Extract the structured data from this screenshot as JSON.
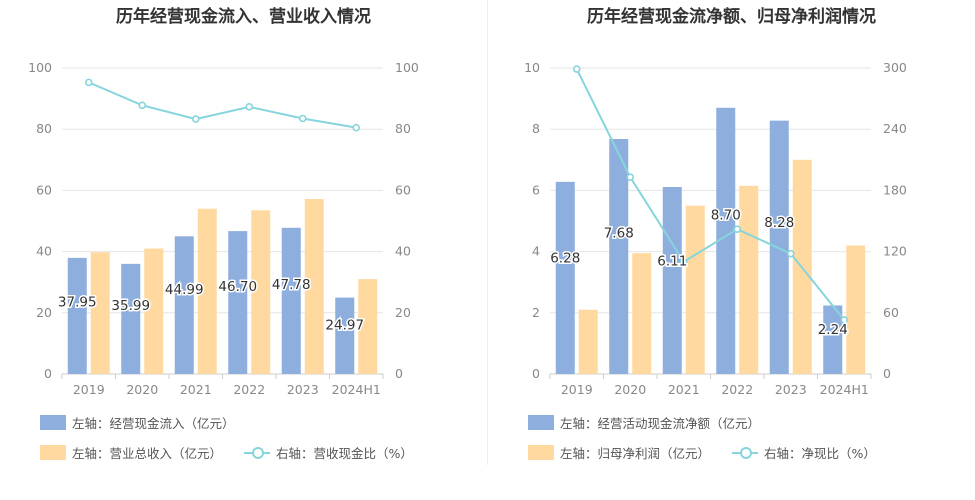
{
  "charts": [
    {
      "id": "left",
      "title": "历年经营现金流入、营业收入情况",
      "type": "bar+line",
      "categories": [
        "2019",
        "2020",
        "2021",
        "2022",
        "2023",
        "2024H1"
      ],
      "left_axis": {
        "min": 0,
        "max": 100,
        "ticks": [
          "0",
          "20",
          "40",
          "60",
          "80",
          "100"
        ]
      },
      "right_axis": {
        "min": 0,
        "max": 100,
        "ticks": [
          "0",
          "20",
          "40",
          "60",
          "80",
          "100"
        ]
      },
      "series": [
        {
          "name": "左轴：经营现金流入（亿元）",
          "type": "bar",
          "axis": "left",
          "color": "#8eaedd",
          "values": [
            37.95,
            35.99,
            44.99,
            46.7,
            47.78,
            24.97
          ],
          "labels": [
            "37.95",
            "35.99",
            "44.99",
            "46.70",
            "47.78",
            "24.97"
          ]
        },
        {
          "name": "左轴：营业总收入（亿元）",
          "type": "bar",
          "axis": "left",
          "color": "#ffd9a0",
          "values": [
            39.8,
            41,
            54,
            53.5,
            57.2,
            31
          ]
        },
        {
          "name": "右轴：营收现金比（%）",
          "type": "line",
          "axis": "right",
          "color": "#86d5dd",
          "values": [
            95.3,
            87.8,
            83.3,
            87.3,
            83.5,
            80.5
          ]
        }
      ]
    },
    {
      "id": "right",
      "title": "历年经营现金流净额、归母净利润情况",
      "type": "bar+line",
      "categories": [
        "2019",
        "2020",
        "2021",
        "2022",
        "2023",
        "2024H1"
      ],
      "left_axis": {
        "min": 0,
        "max": 10,
        "ticks": [
          "0",
          "2",
          "4",
          "6",
          "8",
          "10"
        ]
      },
      "right_axis": {
        "min": 0,
        "max": 300,
        "ticks": [
          "0",
          "60",
          "120",
          "180",
          "240",
          "300"
        ]
      },
      "series": [
        {
          "name": "左轴：经营活动现金流净额（亿元）",
          "type": "bar",
          "axis": "left",
          "color": "#8eaedd",
          "values": [
            6.28,
            7.68,
            6.11,
            8.7,
            8.28,
            2.24
          ],
          "labels": [
            "6.28",
            "7.68",
            "6.11",
            "8.70",
            "8.28",
            "2.24"
          ]
        },
        {
          "name": "左轴：归母净利润（亿元）",
          "type": "bar",
          "axis": "left",
          "color": "#ffd9a0",
          "values": [
            2.1,
            3.95,
            5.5,
            6.15,
            7.0,
            4.2
          ]
        },
        {
          "name": "右轴：净现比（%）",
          "type": "line",
          "axis": "right",
          "color": "#86d5dd",
          "values": [
            299,
            193,
            110,
            142,
            118,
            53
          ]
        }
      ]
    }
  ]
}
